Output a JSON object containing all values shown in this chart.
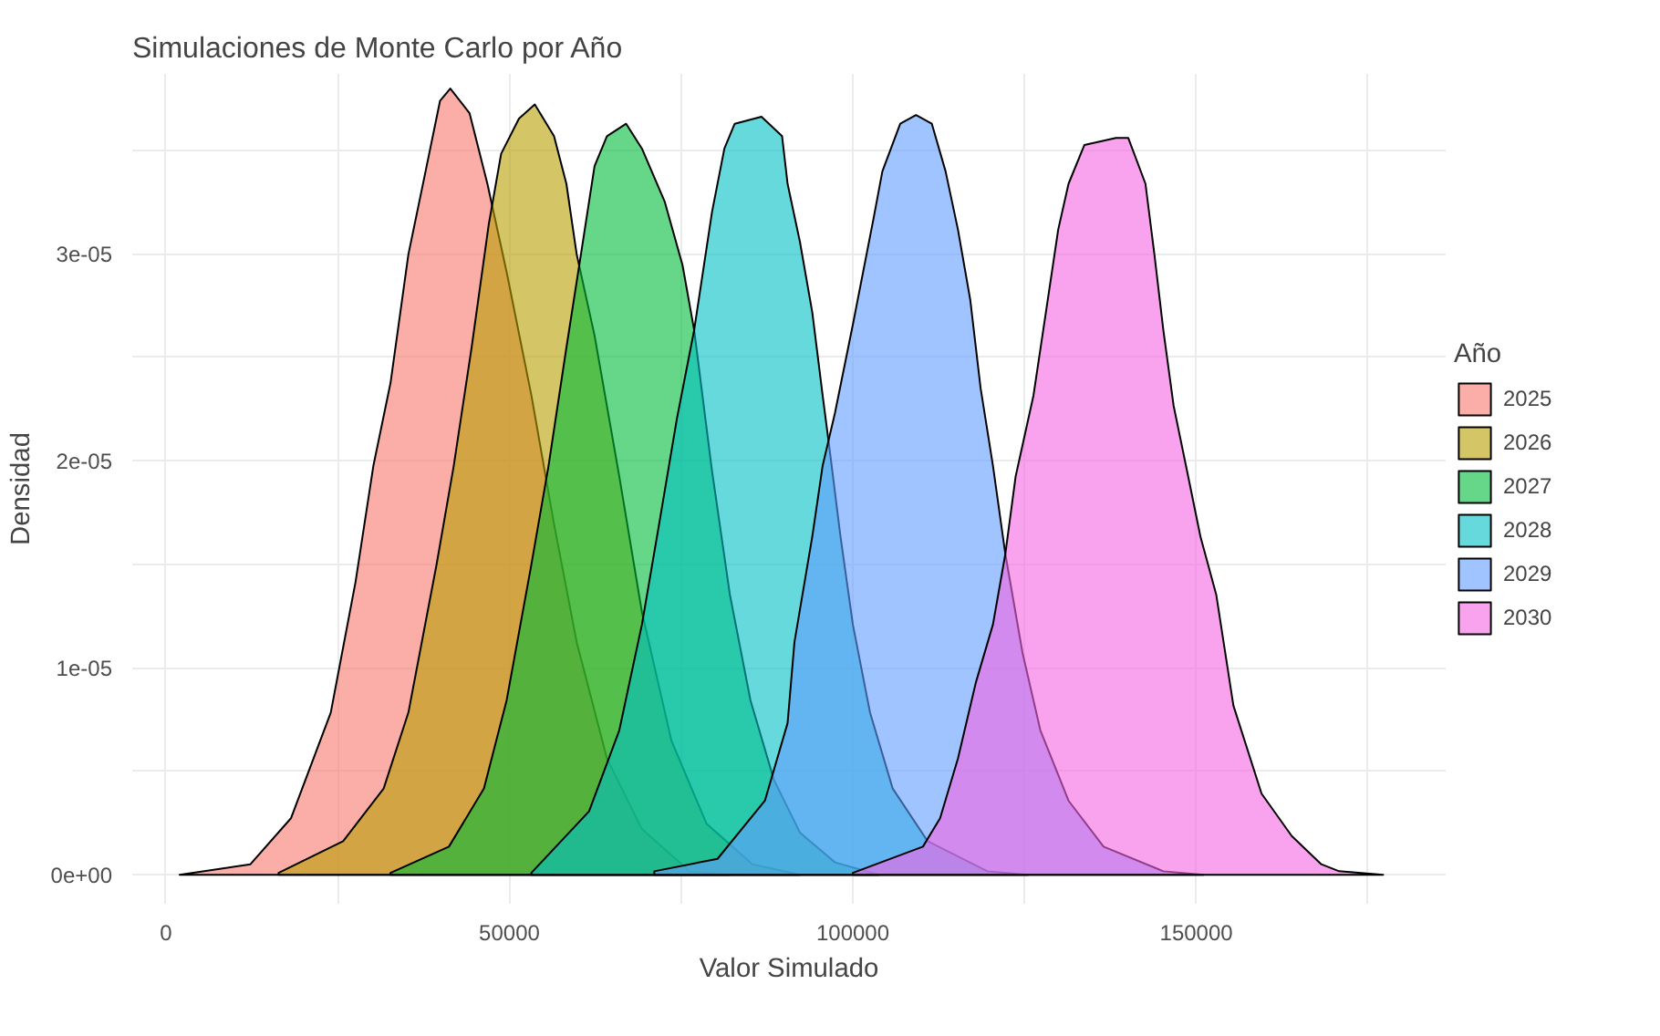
{
  "chart_data": {
    "type": "area",
    "title": "Simulaciones de Monte Carlo por Año",
    "xlabel": "Valor Simulado",
    "ylabel": "Densidad",
    "legend_title": "Año",
    "legend": "right",
    "grid": true,
    "xlim": [
      -4900,
      186300
    ],
    "ylim": [
      -1.4e-06,
      3.87e-05
    ],
    "xticks": [
      0,
      {
        "value": 25000,
        "label": null
      },
      50000,
      {
        "value": 75000,
        "label": null
      },
      100000,
      {
        "value": 125000,
        "label": null
      },
      150000,
      {
        "value": 175000,
        "label": null
      }
    ],
    "yticks": [
      {
        "value": 0,
        "label": "0e+00"
      },
      {
        "value": 5e-06,
        "label": null
      },
      {
        "value": 1e-05,
        "label": "1e-05"
      },
      {
        "value": 1.5e-05,
        "label": null
      },
      {
        "value": 2e-05,
        "label": "2e-05"
      },
      {
        "value": 2.5e-05,
        "label": null
      },
      {
        "value": 3e-05,
        "label": "3e-05"
      },
      {
        "value": 3.5e-05,
        "label": null
      }
    ],
    "series": [
      {
        "name": "2025",
        "color": "#f8766d",
        "x": [
          2000,
          12300,
          18200,
          24000,
          27600,
          30200,
          32700,
          35300,
          37800,
          39900,
          41400,
          44200,
          46800,
          49600,
          53200,
          56500,
          59800,
          64200,
          69300,
          76200,
          82100
        ],
        "values": [
          0,
          5.1e-07,
          2.73e-06,
          7.84e-06,
          1.414e-05,
          1.976e-05,
          2.377e-05,
          2.998e-05,
          3.399e-05,
          3.739e-05,
          3.799e-05,
          3.68e-05,
          3.339e-05,
          2.913e-05,
          2.317e-05,
          1.695e-05,
          1.124e-05,
          5.62e-06,
          2.21e-06,
          1.7e-07,
          0
        ]
      },
      {
        "name": "2026",
        "color": "#b79f00",
        "x": [
          16400,
          25800,
          31700,
          35300,
          39400,
          41900,
          44500,
          47000,
          48800,
          51400,
          53700,
          56500,
          58300,
          59800,
          62400,
          66000,
          69300,
          73600,
          78700,
          85400,
          92300
        ],
        "values": [
          9e-08,
          1.62e-06,
          4.17e-06,
          7.84e-06,
          1.499e-05,
          1.976e-05,
          2.547e-05,
          3.143e-05,
          3.484e-05,
          3.654e-05,
          3.722e-05,
          3.569e-05,
          3.339e-05,
          2.998e-05,
          2.606e-05,
          1.925e-05,
          1.269e-05,
          6.47e-06,
          2.47e-06,
          5.1e-07,
          0
        ]
      },
      {
        "name": "2027",
        "color": "#00ba38",
        "x": [
          32700,
          41200,
          46300,
          49600,
          53200,
          55700,
          58300,
          60300,
          62400,
          64200,
          67000,
          69300,
          72600,
          75200,
          76900,
          79500,
          82100,
          85100,
          88500,
          92300,
          97400,
          103800
        ],
        "values": [
          9e-08,
          1.36e-06,
          4.17e-06,
          8.43e-06,
          1.499e-05,
          1.976e-05,
          2.547e-05,
          2.973e-05,
          3.424e-05,
          3.569e-05,
          3.629e-05,
          3.509e-05,
          3.254e-05,
          2.947e-05,
          2.632e-05,
          1.951e-05,
          1.354e-05,
          8.43e-06,
          4.6e-06,
          2.04e-06,
          6e-07,
          0
        ]
      },
      {
        "name": "2028",
        "color": "#00bfc4",
        "x": [
          53200,
          61600,
          66000,
          69300,
          71800,
          74400,
          76900,
          79500,
          81300,
          82800,
          86700,
          89700,
          90500,
          92300,
          94100,
          95600,
          96600,
          98200,
          100000,
          102500,
          105800,
          110900,
          119600,
          125500
        ],
        "values": [
          9e-08,
          3.07e-06,
          6.98e-06,
          1.21e-05,
          1.695e-05,
          2.206e-05,
          2.632e-05,
          3.203e-05,
          3.509e-05,
          3.629e-05,
          3.663e-05,
          3.569e-05,
          3.339e-05,
          3.058e-05,
          2.717e-05,
          2.317e-05,
          2.061e-05,
          1.635e-05,
          1.21e-05,
          7.84e-06,
          4.17e-06,
          1.62e-06,
          1.7e-07,
          0
        ]
      },
      {
        "name": "2029",
        "color": "#619cff",
        "x": [
          71100,
          80300,
          87200,
          90500,
          91500,
          94100,
          95600,
          97400,
          100000,
          103000,
          104300,
          106900,
          109200,
          111500,
          113500,
          115300,
          117100,
          118600,
          120400,
          122200,
          124700,
          127300,
          131400,
          136500,
          145200,
          151100
        ],
        "values": [
          1.7e-07,
          7.7e-07,
          3.58e-06,
          7.33e-06,
          1.124e-05,
          1.635e-05,
          1.976e-05,
          2.232e-05,
          2.658e-05,
          3.169e-05,
          3.399e-05,
          3.629e-05,
          3.671e-05,
          3.629e-05,
          3.399e-05,
          3.118e-05,
          2.777e-05,
          2.351e-05,
          1.976e-05,
          1.55e-05,
          1.073e-05,
          6.98e-06,
          3.58e-06,
          1.36e-06,
          1.7e-07,
          0
        ]
      },
      {
        "name": "2030",
        "color": "#f564e3",
        "x": [
          100000,
          110200,
          112700,
          115300,
          117900,
          120400,
          122200,
          123700,
          126300,
          128100,
          129900,
          131400,
          133700,
          138300,
          140100,
          142600,
          143900,
          145200,
          146700,
          148500,
          150600,
          152900,
          155400,
          159500,
          163900,
          168200,
          170800,
          177200
        ],
        "values": [
          9e-08,
          1.36e-06,
          2.73e-06,
          5.62e-06,
          9.28e-06,
          1.21e-05,
          1.55e-05,
          1.925e-05,
          2.317e-05,
          2.717e-05,
          3.118e-05,
          3.339e-05,
          3.526e-05,
          3.56e-05,
          3.56e-05,
          3.339e-05,
          2.998e-05,
          2.632e-05,
          2.266e-05,
          1.976e-05,
          1.635e-05,
          1.354e-05,
          8.18e-06,
          3.92e-06,
          1.87e-06,
          5.1e-07,
          1.7e-07,
          0
        ]
      }
    ]
  }
}
